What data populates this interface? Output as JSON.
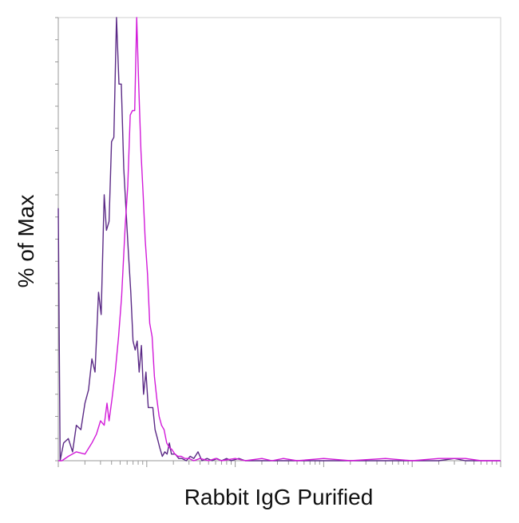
{
  "chart_data": {
    "type": "line",
    "title": "",
    "xlabel": "Rabbit IgG Purified",
    "ylabel": "% of Max",
    "xscale": "log",
    "xlim": [
      1,
      100000
    ],
    "ylim": [
      0,
      100
    ],
    "grid": false,
    "legend": "none",
    "series": [
      {
        "color": "#5b2a86",
        "points": [
          [
            1.0,
            57
          ],
          [
            1.05,
            0
          ],
          [
            1.15,
            4
          ],
          [
            1.3,
            5
          ],
          [
            1.45,
            2
          ],
          [
            1.6,
            8
          ],
          [
            1.8,
            7
          ],
          [
            2.0,
            13
          ],
          [
            2.2,
            16
          ],
          [
            2.4,
            23
          ],
          [
            2.6,
            20
          ],
          [
            2.85,
            38
          ],
          [
            3.05,
            33
          ],
          [
            3.3,
            60
          ],
          [
            3.5,
            52
          ],
          [
            3.75,
            54
          ],
          [
            4.0,
            72
          ],
          [
            4.25,
            73
          ],
          [
            4.55,
            100
          ],
          [
            4.85,
            85
          ],
          [
            5.15,
            85
          ],
          [
            5.5,
            66
          ],
          [
            5.85,
            56
          ],
          [
            6.2,
            47
          ],
          [
            6.6,
            38
          ],
          [
            7.0,
            27
          ],
          [
            7.4,
            25
          ],
          [
            7.8,
            27
          ],
          [
            8.2,
            20
          ],
          [
            8.7,
            26
          ],
          [
            9.2,
            15
          ],
          [
            9.8,
            20
          ],
          [
            10.4,
            12
          ],
          [
            11.0,
            12
          ],
          [
            11.7,
            12
          ],
          [
            12.4,
            7
          ],
          [
            13.2,
            5
          ],
          [
            14.0,
            3
          ],
          [
            15.0,
            1
          ],
          [
            16.0,
            2
          ],
          [
            17.0,
            1.5
          ],
          [
            18.0,
            4
          ],
          [
            19.0,
            1.5
          ],
          [
            21.0,
            1.5
          ],
          [
            23.0,
            0.5
          ],
          [
            25.0,
            0.5
          ],
          [
            28.0,
            0
          ],
          [
            31.0,
            1
          ],
          [
            34.0,
            0.5
          ],
          [
            38.0,
            2
          ],
          [
            42.0,
            0
          ],
          [
            48.0,
            0.5
          ],
          [
            55.0,
            0
          ],
          [
            62.0,
            0.5
          ],
          [
            70.0,
            0
          ],
          [
            80.0,
            0.5
          ],
          [
            90.0,
            0
          ],
          [
            110.0,
            0.5
          ],
          [
            130.0,
            0
          ],
          [
            160.0,
            0
          ],
          [
            200.0,
            0
          ],
          [
            300.0,
            0
          ],
          [
            400.0,
            0
          ],
          [
            600.0,
            0
          ],
          [
            1000.0,
            0
          ],
          [
            2000.0,
            0
          ],
          [
            5000.0,
            0
          ],
          [
            10000.0,
            0
          ],
          [
            20000.0,
            0
          ],
          [
            30000.0,
            0.5
          ],
          [
            40000.0,
            0
          ],
          [
            100000.0,
            0
          ]
        ]
      },
      {
        "color": "#d21bd9",
        "points": [
          [
            1.0,
            0
          ],
          [
            1.1,
            0
          ],
          [
            1.3,
            1
          ],
          [
            1.6,
            2
          ],
          [
            2.0,
            1.5
          ],
          [
            2.4,
            4
          ],
          [
            2.7,
            6
          ],
          [
            3.0,
            9
          ],
          [
            3.3,
            8
          ],
          [
            3.55,
            13
          ],
          [
            3.75,
            9
          ],
          [
            4.05,
            14
          ],
          [
            4.4,
            20
          ],
          [
            4.8,
            28
          ],
          [
            5.2,
            37
          ],
          [
            5.7,
            53
          ],
          [
            6.1,
            62
          ],
          [
            6.5,
            78
          ],
          [
            6.9,
            79
          ],
          [
            7.3,
            79
          ],
          [
            7.7,
            100
          ],
          [
            8.1,
            85
          ],
          [
            8.6,
            70
          ],
          [
            9.1,
            60
          ],
          [
            9.6,
            50
          ],
          [
            10.2,
            42
          ],
          [
            10.8,
            31
          ],
          [
            11.5,
            28
          ],
          [
            12.2,
            19
          ],
          [
            13.0,
            14
          ],
          [
            13.8,
            10
          ],
          [
            14.7,
            8
          ],
          [
            15.7,
            7
          ],
          [
            16.8,
            4
          ],
          [
            18.0,
            3
          ],
          [
            19.3,
            2.5
          ],
          [
            20.8,
            1.5
          ],
          [
            22.5,
            1
          ],
          [
            24.5,
            1
          ],
          [
            27.0,
            0.5
          ],
          [
            30.0,
            0.5
          ],
          [
            34.0,
            0
          ],
          [
            40.0,
            0.5
          ],
          [
            50.0,
            0
          ],
          [
            60.0,
            0.5
          ],
          [
            70.0,
            0
          ],
          [
            100.0,
            0.5
          ],
          [
            130.0,
            0
          ],
          [
            200.0,
            0.5
          ],
          [
            260.0,
            0
          ],
          [
            350.0,
            0.5
          ],
          [
            500.0,
            0
          ],
          [
            1000.0,
            0.5
          ],
          [
            2000.0,
            0
          ],
          [
            5000.0,
            0.5
          ],
          [
            10000.0,
            0
          ],
          [
            20000.0,
            0.5
          ],
          [
            40000.0,
            0.5
          ],
          [
            60000.0,
            0
          ],
          [
            100000.0,
            0
          ]
        ]
      }
    ]
  }
}
